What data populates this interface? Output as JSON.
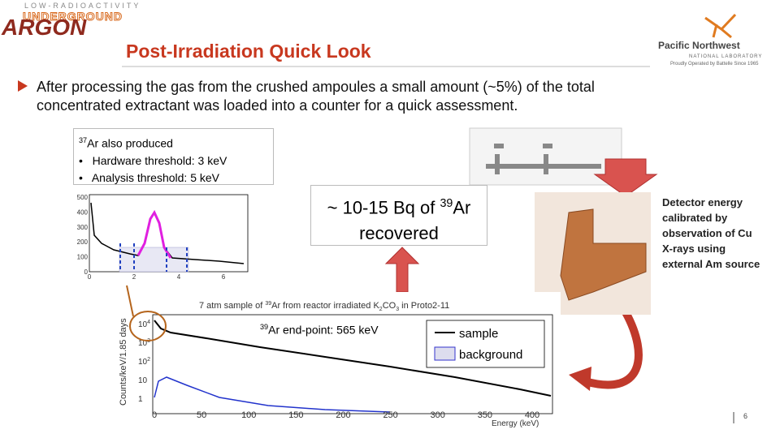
{
  "logo": {
    "top": "LOW-RADIOACTIVITY",
    "middle": "UNDERGROUND",
    "bottom": "ARGON"
  },
  "header": {
    "title": "Post-Irradiation Quick Look"
  },
  "pnnl": {
    "name": "Pacific Northwest",
    "sub": "NATIONAL LABORATORY",
    "tagline": "Proudly Operated by Battelle Since 1965"
  },
  "bullet": "After processing the gas from the crushed ampoules a small amount (~5%) of the total concentrated extractant was loaded into a counter for a quick assessment.",
  "box1": {
    "sup": "37",
    "heading": "Ar also produced",
    "items": [
      "Hardware threshold: 3 keV",
      "Analysis threshold: 5 keV"
    ]
  },
  "box2": {
    "prefix": "~ 10-15 Bq of ",
    "sup": "39",
    "suffix": "Ar",
    "line2": "recovered"
  },
  "note": "Detector energy calibrated by observation of Cu X-rays using external Am source",
  "endpoint": {
    "sup": "39",
    "text": "Ar end-point: 565 keV"
  },
  "small_plot": {
    "yticks": [
      "500",
      "400",
      "300",
      "200",
      "100",
      "0"
    ],
    "xticks": [
      "0",
      "2",
      "4",
      "6"
    ]
  },
  "big_plot": {
    "title": {
      "a": "7 atm sample of ",
      "sup": "39",
      "b": "Ar from reactor irradiated K",
      "sub1": "2",
      "c": "CO",
      "sub2": "3",
      "d": " in Proto2-11"
    },
    "ylabel": "Counts/keV/1.85 days",
    "xlabel": "Energy (keV)",
    "xticks": [
      "0",
      "50",
      "100",
      "150",
      "200",
      "250",
      "300",
      "350",
      "400"
    ],
    "yticks": [
      {
        "base": "10",
        "exp": "4"
      },
      {
        "base": "10",
        "exp": "3"
      },
      {
        "base": "10",
        "exp": "2"
      },
      {
        "base": "10"
      },
      {
        "base": "1"
      }
    ],
    "legend": [
      "sample",
      "background"
    ]
  },
  "page_number": "6"
}
